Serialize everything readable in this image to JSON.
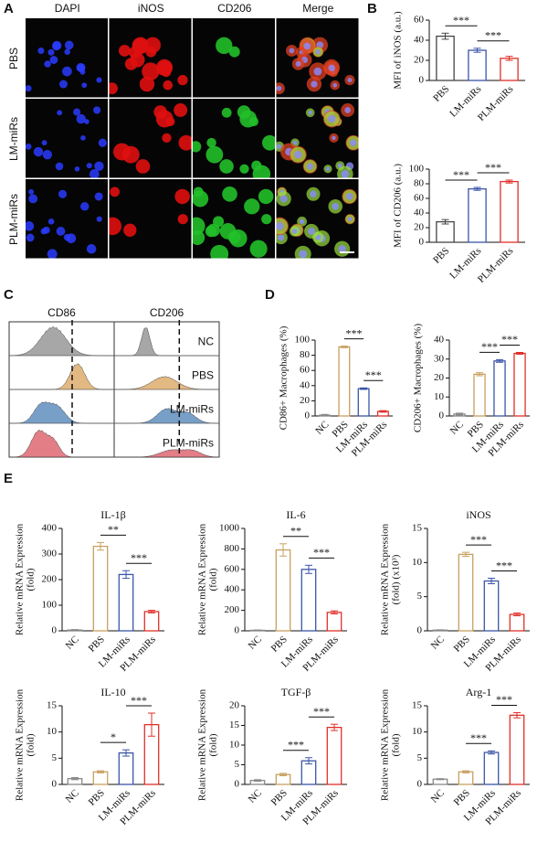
{
  "panels": [
    "A",
    "B",
    "C",
    "D",
    "E"
  ],
  "microscopy": {
    "columns": [
      "DAPI",
      "iNOS",
      "CD206",
      "Merge"
    ],
    "column_colors": [
      "#2233dd",
      "#dd1111",
      "#22aa22",
      "#111111"
    ],
    "rows": [
      "PBS",
      "LM-miRs",
      "PLM-miRs"
    ]
  },
  "flow": {
    "markers": [
      "CD86",
      "CD206"
    ],
    "groups": [
      "NC",
      "PBS",
      "LM-miRs",
      "PLM-miRs"
    ],
    "colors": [
      "#8a8a8a",
      "#d9a15a",
      "#4a7fb5",
      "#d9535f"
    ]
  },
  "chart_data": [
    {
      "type": "bar",
      "ylabel": [
        "MFI of iNOS (a.u.)"
      ],
      "categories": [
        "PBS",
        "LM-miRs",
        "PLM-miRs"
      ],
      "values": [
        44,
        30,
        22
      ],
      "errors": [
        3,
        2,
        2
      ],
      "colors": [
        "#444444",
        "#3a55a8",
        "#e0302a"
      ],
      "ylim": [
        0,
        60
      ],
      "yticks": [
        0,
        20,
        40,
        60
      ],
      "annotations": [
        {
          "text": "***",
          "between": [
            "PBS",
            "LM-miRs"
          ]
        },
        {
          "text": "***",
          "between": [
            "LM-miRs",
            "PLM-miRs"
          ]
        }
      ]
    },
    {
      "type": "bar",
      "ylabel": [
        "MFI of CD206 (a.u.)"
      ],
      "categories": [
        "PBS",
        "LM-miRs",
        "PLM-miRs"
      ],
      "values": [
        28,
        73,
        83
      ],
      "errors": [
        3,
        2,
        2
      ],
      "colors": [
        "#444444",
        "#3a55a8",
        "#e0302a"
      ],
      "ylim": [
        0,
        100
      ],
      "yticks": [
        0,
        20,
        40,
        60,
        80,
        100
      ],
      "annotations": [
        {
          "text": "***",
          "between": [
            "PBS",
            "LM-miRs"
          ]
        },
        {
          "text": "***",
          "between": [
            "LM-miRs",
            "PLM-miRs"
          ]
        }
      ]
    },
    {
      "type": "bar",
      "ylabel": [
        "CD86+ Macrophages (%)"
      ],
      "categories": [
        "NC",
        "PBS",
        "LM-miRs",
        "PLM-miRs"
      ],
      "values": [
        1,
        91,
        36,
        6
      ],
      "errors": [
        1,
        1,
        1,
        1
      ],
      "colors": [
        "#888888",
        "#c8a060",
        "#3a55a8",
        "#e0302a"
      ],
      "ylim": [
        0,
        100
      ],
      "yticks": [
        0,
        20,
        40,
        60,
        80,
        100
      ],
      "annotations": [
        {
          "text": "***",
          "between": [
            "PBS",
            "LM-miRs"
          ]
        },
        {
          "text": "***",
          "between": [
            "LM-miRs",
            "PLM-miRs"
          ]
        }
      ]
    },
    {
      "type": "bar",
      "ylabel": [
        "CD206+ Macrophages (%)"
      ],
      "categories": [
        "NC",
        "PBS",
        "LM-miRs",
        "PLM-miRs"
      ],
      "values": [
        1,
        22,
        29,
        33
      ],
      "errors": [
        0.5,
        0.8,
        0.7,
        0.5
      ],
      "colors": [
        "#888888",
        "#c8a060",
        "#3a55a8",
        "#e0302a"
      ],
      "ylim": [
        0,
        40
      ],
      "yticks": [
        0,
        10,
        20,
        30,
        40
      ],
      "annotations": [
        {
          "text": "***",
          "between": [
            "PBS",
            "LM-miRs"
          ]
        },
        {
          "text": "***",
          "between": [
            "LM-miRs",
            "PLM-miRs"
          ]
        }
      ]
    },
    {
      "type": "bar",
      "title": "IL-1β",
      "ylabel": [
        "Relative mRNA Expression",
        "(fold)"
      ],
      "categories": [
        "NC",
        "PBS",
        "LM-miRs",
        "PLM-miRs"
      ],
      "values": [
        3,
        330,
        220,
        75
      ],
      "errors": [
        2,
        15,
        15,
        5
      ],
      "colors": [
        "#888888",
        "#c8a060",
        "#3a55a8",
        "#e0302a"
      ],
      "ylim": [
        0,
        400
      ],
      "yticks": [
        0,
        100,
        200,
        300,
        400
      ],
      "annotations": [
        {
          "text": "**",
          "between": [
            "PBS",
            "LM-miRs"
          ]
        },
        {
          "text": "***",
          "between": [
            "LM-miRs",
            "PLM-miRs"
          ]
        }
      ]
    },
    {
      "type": "bar",
      "title": "IL-6",
      "ylabel": [
        "Relative mRNA Expression",
        "(fold)"
      ],
      "categories": [
        "NC",
        "PBS",
        "LM-miRs",
        "PLM-miRs"
      ],
      "values": [
        5,
        790,
        600,
        180
      ],
      "errors": [
        3,
        60,
        40,
        15
      ],
      "colors": [
        "#888888",
        "#c8a060",
        "#3a55a8",
        "#e0302a"
      ],
      "ylim": [
        0,
        1000
      ],
      "yticks": [
        0,
        200,
        400,
        600,
        800,
        1000
      ],
      "annotations": [
        {
          "text": "**",
          "between": [
            "PBS",
            "LM-miRs"
          ]
        },
        {
          "text": "***",
          "between": [
            "LM-miRs",
            "PLM-miRs"
          ]
        }
      ]
    },
    {
      "type": "bar",
      "title": "iNOS",
      "ylabel": [
        "Relative mRNA Expression",
        "(fold) (x10³)"
      ],
      "categories": [
        "NC",
        "PBS",
        "LM-miRs",
        "PLM-miRs"
      ],
      "values": [
        0.1,
        11.2,
        7.3,
        2.4
      ],
      "errors": [
        0.05,
        0.3,
        0.4,
        0.2
      ],
      "colors": [
        "#888888",
        "#c8a060",
        "#3a55a8",
        "#e0302a"
      ],
      "ylim": [
        0,
        15
      ],
      "yticks": [
        0,
        5,
        10,
        15
      ],
      "annotations": [
        {
          "text": "***",
          "between": [
            "PBS",
            "LM-miRs"
          ]
        },
        {
          "text": "***",
          "between": [
            "LM-miRs",
            "PLM-miRs"
          ]
        }
      ]
    },
    {
      "type": "bar",
      "title": "IL-10",
      "ylabel": [
        "Relative mRNA Expression",
        "(fold)"
      ],
      "categories": [
        "NC",
        "PBS",
        "LM-miRs",
        "PLM-miRs"
      ],
      "values": [
        1.1,
        2.4,
        6.0,
        11.4
      ],
      "errors": [
        0.2,
        0.2,
        0.6,
        2.2
      ],
      "colors": [
        "#888888",
        "#c8a060",
        "#3a55a8",
        "#e0302a"
      ],
      "ylim": [
        0,
        15
      ],
      "yticks": [
        0,
        5,
        10,
        15
      ],
      "annotations": [
        {
          "text": "*",
          "between": [
            "PBS",
            "LM-miRs"
          ]
        },
        {
          "text": "***",
          "between": [
            "LM-miRs",
            "PLM-miRs"
          ]
        }
      ]
    },
    {
      "type": "bar",
      "title": "TGF-β",
      "ylabel": [
        "Relative mRNA Expression",
        "(fold)"
      ],
      "categories": [
        "NC",
        "PBS",
        "LM-miRs",
        "PLM-miRs"
      ],
      "values": [
        1,
        2.5,
        6,
        14.5
      ],
      "errors": [
        0.2,
        0.3,
        0.8,
        0.8
      ],
      "colors": [
        "#888888",
        "#c8a060",
        "#3a55a8",
        "#e0302a"
      ],
      "ylim": [
        0,
        20
      ],
      "yticks": [
        0,
        5,
        10,
        15,
        20
      ],
      "annotations": [
        {
          "text": "***",
          "between": [
            "PBS",
            "LM-miRs"
          ]
        },
        {
          "text": "***",
          "between": [
            "LM-miRs",
            "PLM-miRs"
          ]
        }
      ]
    },
    {
      "type": "bar",
      "title": "Arg-1",
      "ylabel": [
        "Relative mRNA Expression",
        "(fold)"
      ],
      "categories": [
        "NC",
        "PBS",
        "LM-miRs",
        "PLM-miRs"
      ],
      "values": [
        1,
        2.4,
        6.1,
        13.2
      ],
      "errors": [
        0.1,
        0.2,
        0.3,
        0.5
      ],
      "colors": [
        "#888888",
        "#c8a060",
        "#3a55a8",
        "#e0302a"
      ],
      "ylim": [
        0,
        15
      ],
      "yticks": [
        0,
        5,
        10,
        15
      ],
      "annotations": [
        {
          "text": "***",
          "between": [
            "PBS",
            "LM-miRs"
          ]
        },
        {
          "text": "***",
          "between": [
            "LM-miRs",
            "PLM-miRs"
          ]
        }
      ]
    }
  ]
}
